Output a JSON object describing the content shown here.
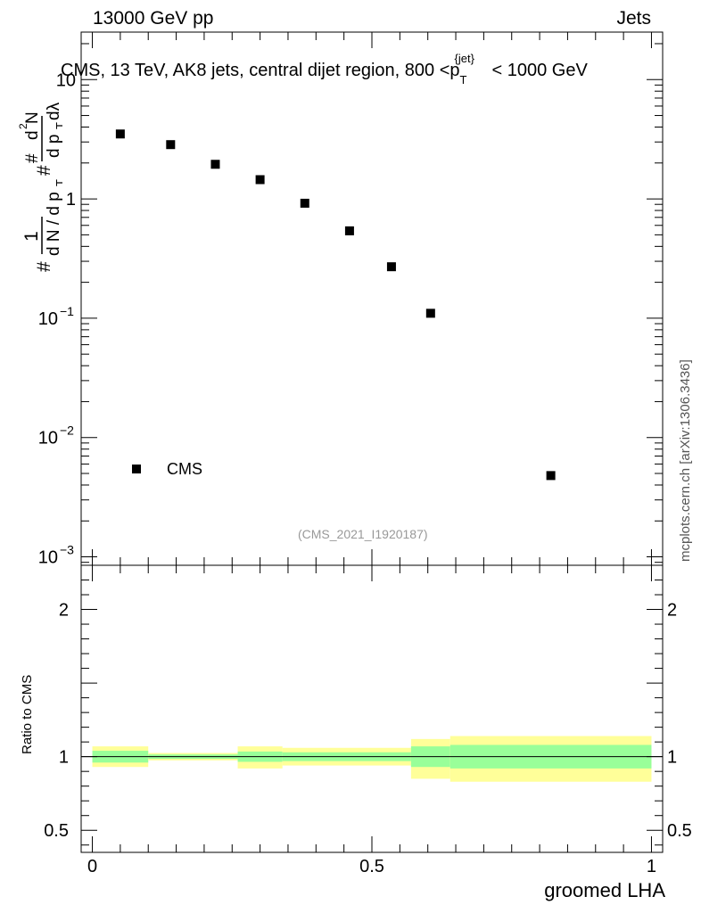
{
  "header": {
    "energy_label": "13000 GeV pp",
    "category_label": "Jets"
  },
  "side_label": "mcplots.cern.ch [arXiv:1306.3436]",
  "analysis_id": "(CMS_2021_I1920187)",
  "colors": {
    "marker": "#000000",
    "band_inner": "#99ff99",
    "band_outer": "#ffff99",
    "watermark": "#999999"
  },
  "chart_data": [
    {
      "type": "scatter",
      "title": "CMS, 13 TeV, AK8 jets, central dijet region, 800 <p_T^{jet}< 1000 GeV",
      "title_parts": {
        "prefix": "CMS, 13 TeV, AK8 jets, central dijet region, 800 <p",
        "sub": "T",
        "sup": "{jet}",
        "suffix": "< 1000 GeV"
      },
      "ylabel": "# 1/(dN/dp_T) # d²N/(dp_T dλ)",
      "yscale": "log",
      "ylim": [
        0.00085,
        25
      ],
      "xlim": [
        -0.02,
        1.02
      ],
      "y_ticks": [
        {
          "value": 10,
          "base": "10",
          "exp": ""
        },
        {
          "value": 1,
          "base": "1",
          "exp": ""
        },
        {
          "value": 0.1,
          "base": "10",
          "exp": "−1"
        },
        {
          "value": 0.01,
          "base": "10",
          "exp": "−2"
        },
        {
          "value": 0.001,
          "base": "10",
          "exp": "−3"
        }
      ],
      "series": [
        {
          "name": "CMS",
          "x": [
            0.05,
            0.14,
            0.22,
            0.3,
            0.38,
            0.46,
            0.535,
            0.605,
            0.82
          ],
          "y": [
            3.5,
            2.85,
            1.95,
            1.45,
            0.92,
            0.54,
            0.27,
            0.11,
            0.0048
          ]
        }
      ],
      "legend": {
        "entries": [
          "CMS"
        ],
        "position": "bottom-left"
      }
    },
    {
      "type": "area",
      "ylabel": "Ratio to CMS",
      "xlabel": "groomed LHA",
      "ylim": [
        0.35,
        2.3
      ],
      "xlim": [
        -0.02,
        1.02
      ],
      "x_ticks": [
        "0",
        "0.5",
        "1"
      ],
      "x_tick_values": [
        0,
        0.5,
        1
      ],
      "y_ticks": [
        "0.5",
        "1",
        "2"
      ],
      "y_tick_values": [
        0.5,
        1,
        2
      ],
      "reference_line": 1,
      "bins": [
        {
          "x0": 0.0,
          "x1": 0.1,
          "stat_lo": 0.96,
          "stat_hi": 1.04,
          "tot_lo": 0.93,
          "tot_hi": 1.07
        },
        {
          "x0": 0.1,
          "x1": 0.26,
          "stat_lo": 0.985,
          "stat_hi": 1.015,
          "tot_lo": 0.975,
          "tot_hi": 1.025
        },
        {
          "x0": 0.26,
          "x1": 0.34,
          "stat_lo": 0.965,
          "stat_hi": 1.035,
          "tot_lo": 0.92,
          "tot_hi": 1.07
        },
        {
          "x0": 0.34,
          "x1": 0.57,
          "stat_lo": 0.97,
          "stat_hi": 1.03,
          "tot_lo": 0.94,
          "tot_hi": 1.06
        },
        {
          "x0": 0.57,
          "x1": 0.64,
          "stat_lo": 0.93,
          "stat_hi": 1.07,
          "tot_lo": 0.85,
          "tot_hi": 1.12
        },
        {
          "x0": 0.64,
          "x1": 1.0,
          "stat_lo": 0.92,
          "stat_hi": 1.08,
          "tot_lo": 0.83,
          "tot_hi": 1.14
        }
      ]
    }
  ]
}
